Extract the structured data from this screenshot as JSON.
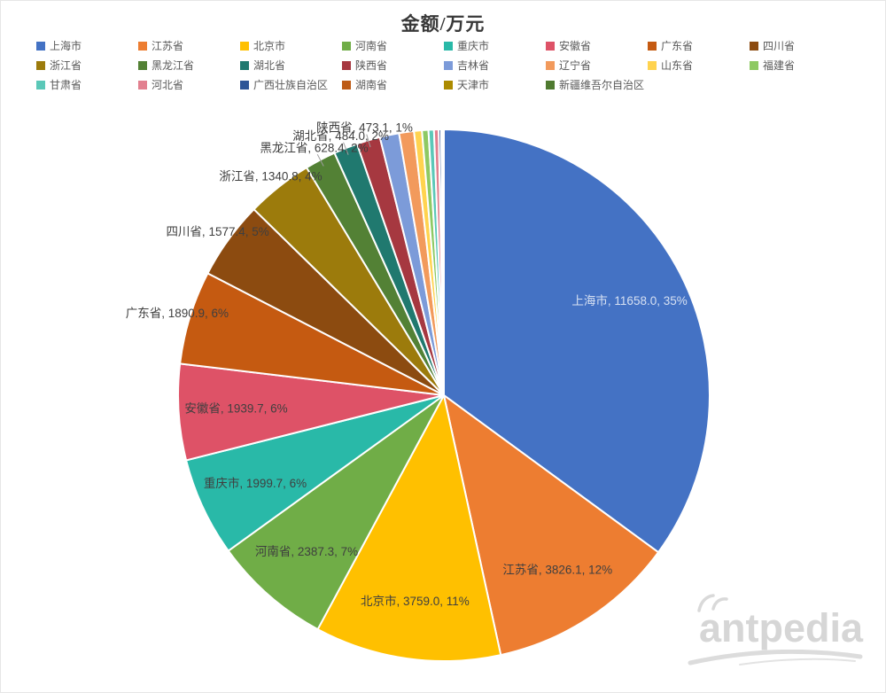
{
  "title": "金额/万元",
  "watermark": {
    "text": "antpedia"
  },
  "chart_data": {
    "type": "pie",
    "title": "金额/万元",
    "unit": "万元",
    "start_angle_deg": 0,
    "direction": "clockwise",
    "legend_position": "top",
    "label_format": "name, value, percent",
    "slices": [
      {
        "name": "上海市",
        "value": 11658.0,
        "pct_label": "35%",
        "color": "#4472C4",
        "label_visible": true,
        "label_placement": "inside",
        "label_color": "light"
      },
      {
        "name": "江苏省",
        "value": 3826.1,
        "pct_label": "12%",
        "color": "#ED7D31",
        "label_visible": true,
        "label_placement": "inside",
        "label_color": "dark"
      },
      {
        "name": "北京市",
        "value": 3759.0,
        "pct_label": "11%",
        "color": "#FFC000",
        "label_visible": true,
        "label_placement": "inside",
        "label_color": "dark"
      },
      {
        "name": "河南省",
        "value": 2387.3,
        "pct_label": "7%",
        "color": "#70AD47",
        "label_visible": true,
        "label_placement": "inside",
        "label_color": "dark"
      },
      {
        "name": "重庆市",
        "value": 1999.7,
        "pct_label": "6%",
        "color": "#29B9A8",
        "label_visible": true,
        "label_placement": "inside",
        "label_color": "dark"
      },
      {
        "name": "安徽省",
        "value": 1939.7,
        "pct_label": "6%",
        "color": "#DE5267",
        "label_visible": true,
        "label_placement": "inside",
        "label_color": "dark"
      },
      {
        "name": "广东省",
        "value": 1890.9,
        "pct_label": "6%",
        "color": "#C55A11",
        "label_visible": true,
        "label_placement": "outside",
        "label_color": "dark"
      },
      {
        "name": "四川省",
        "value": 1577.4,
        "pct_label": "5%",
        "color": "#8C4B10",
        "label_visible": true,
        "label_placement": "outside",
        "label_color": "dark"
      },
      {
        "name": "浙江省",
        "value": 1340.8,
        "pct_label": "4%",
        "color": "#9C7B0C",
        "label_visible": true,
        "label_placement": "outside",
        "label_color": "dark"
      },
      {
        "name": "黑龙江省",
        "value": 628.4,
        "pct_label": "2%",
        "color": "#538135",
        "label_visible": true,
        "label_placement": "outside",
        "label_color": "dark",
        "leader": true
      },
      {
        "name": "湖北省",
        "value": 484.0,
        "pct_label": "2%",
        "color": "#20796F",
        "label_visible": true,
        "label_placement": "outside",
        "label_color": "dark",
        "leader": true
      },
      {
        "name": "陕西省",
        "value": 473.1,
        "pct_label": "1%",
        "color": "#A63840",
        "label_visible": true,
        "label_placement": "outside",
        "label_color": "dark",
        "leader": true
      },
      {
        "name": "吉林省",
        "est_value": 390,
        "color": "#7C9BD9",
        "label_visible": false
      },
      {
        "name": "辽宁省",
        "est_value": 300,
        "color": "#F29A5C",
        "label_visible": false
      },
      {
        "name": "山东省",
        "est_value": 160,
        "color": "#FFD34F",
        "label_visible": false
      },
      {
        "name": "福建省",
        "est_value": 130,
        "color": "#8EC963",
        "label_visible": false
      },
      {
        "name": "甘肃省",
        "est_value": 110,
        "color": "#5BC8B8",
        "label_visible": false
      },
      {
        "name": "河北省",
        "est_value": 95,
        "color": "#E2808F",
        "label_visible": false
      },
      {
        "name": "广西壮族自治区",
        "est_value": 50,
        "color": "#2E5697",
        "label_visible": false
      },
      {
        "name": "湖南省",
        "est_value": 30,
        "color": "#BD5B16",
        "label_visible": false
      },
      {
        "name": "天津市",
        "est_value": 15,
        "color": "#AC8B00",
        "label_visible": false
      },
      {
        "name": "新疆维吾尔自治区",
        "est_value": 8,
        "color": "#4F7A30",
        "label_visible": false
      }
    ]
  }
}
